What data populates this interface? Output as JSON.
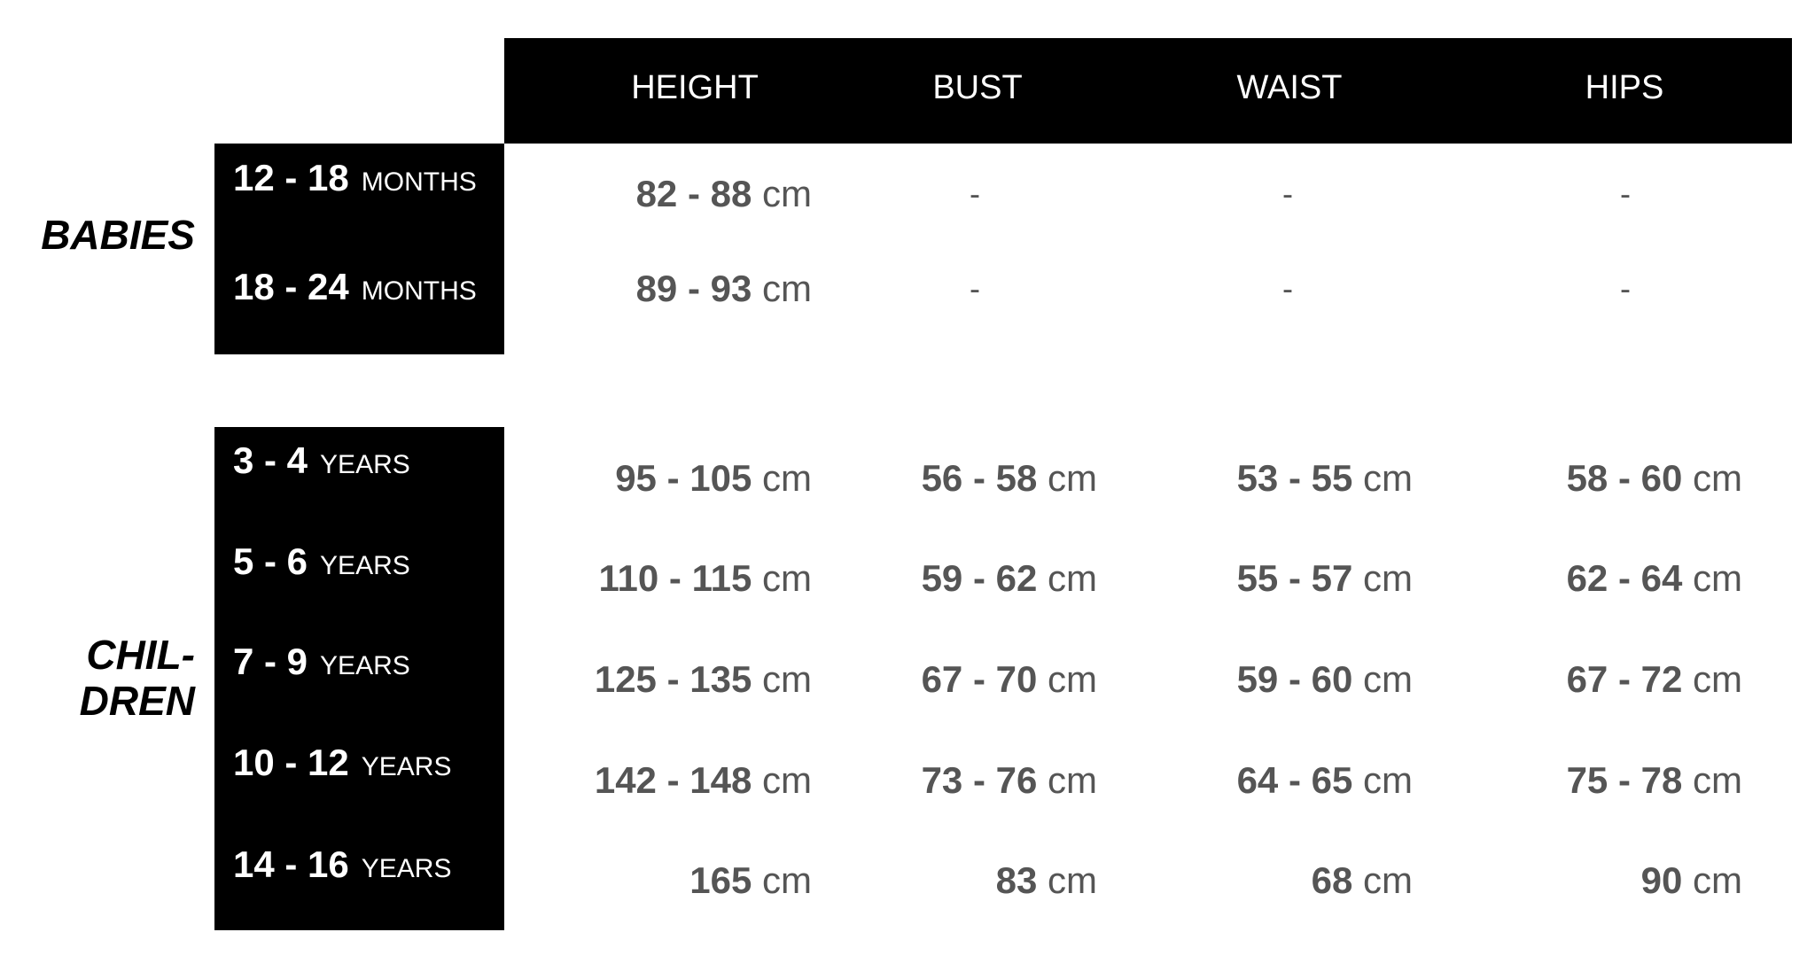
{
  "headers": [
    "HEIGHT",
    "BUST",
    "WAIST",
    "HIPS"
  ],
  "groups": {
    "babies": {
      "label": "BABIES",
      "rows": [
        {
          "range": "12 - 18",
          "unit": "MONTHS",
          "height": "82 - 88",
          "bust": "-",
          "waist": "-",
          "hips": "-"
        },
        {
          "range": "18 - 24",
          "unit": "MONTHS",
          "height": "89 - 93",
          "bust": "-",
          "waist": "-",
          "hips": "-"
        }
      ]
    },
    "children": {
      "label_line1": "CHIL-",
      "label_line2": "DREN",
      "rows": [
        {
          "range": "3 - 4",
          "unit": "YEARS",
          "height": "95 - 105",
          "bust": "56 - 58",
          "waist": "53 - 55",
          "hips": "58 - 60"
        },
        {
          "range": "5 - 6",
          "unit": "YEARS",
          "height": "110 - 115",
          "bust": "59 - 62",
          "waist": "55 - 57",
          "hips": "62 - 64"
        },
        {
          "range": "7 - 9",
          "unit": "YEARS",
          "height": "125 - 135",
          "bust": "67 - 70",
          "waist": "59 - 60",
          "hips": "67 - 72"
        },
        {
          "range": "10 - 12",
          "unit": "YEARS",
          "height": "142 - 148",
          "bust": "73 - 76",
          "waist": "64 - 65",
          "hips": "75 - 78"
        },
        {
          "range": "14 - 16",
          "unit": "YEARS",
          "height": "165",
          "bust": "83",
          "waist": "68",
          "hips": "90"
        }
      ]
    }
  },
  "unit": "cm"
}
